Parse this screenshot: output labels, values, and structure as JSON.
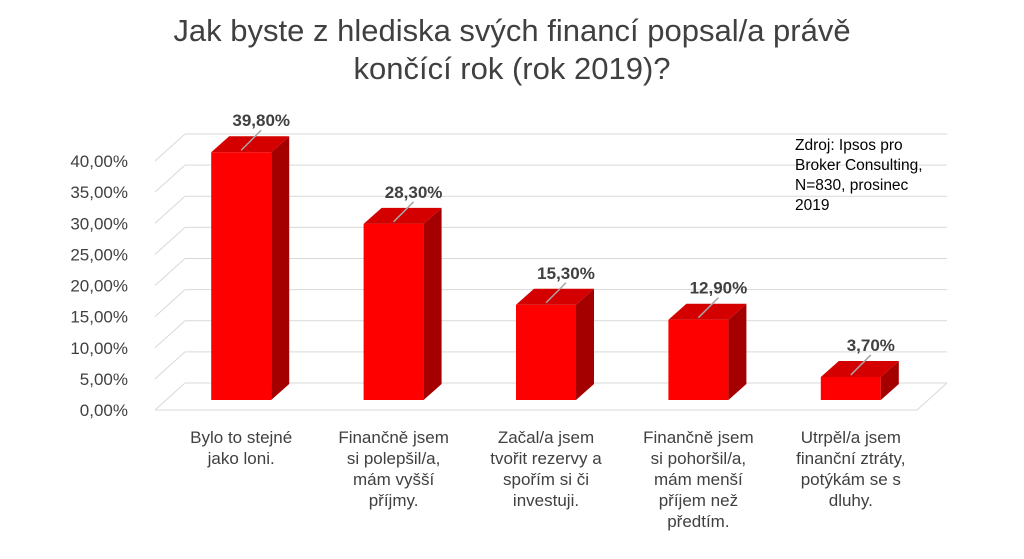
{
  "chart_data": {
    "type": "bar",
    "title": [
      "Jak byste z hlediska svých financí popsal/a právě",
      "končící rok (rok 2019)?"
    ],
    "categories": [
      [
        "Bylo to stejné",
        "jako loni."
      ],
      [
        "Finančně jsem",
        "si polepšil/a,",
        "mám vyšší",
        "příjmy."
      ],
      [
        "Začal/a jsem",
        "tvořit rezervy a",
        "spořím si či",
        "investuji."
      ],
      [
        "Finančně jsem",
        "si pohoršil/a,",
        "mám menší",
        "příjem než",
        "předtím."
      ],
      [
        "Utrpěl/a jsem",
        "finanční ztráty,",
        "potýkám se s",
        "dluhy."
      ]
    ],
    "values": [
      39.8,
      28.3,
      15.3,
      12.9,
      3.7
    ],
    "data_labels": [
      "39,80%",
      "28,30%",
      "15,30%",
      "12,90%",
      "3,70%"
    ],
    "yticks": [
      "0,00%",
      "5,00%",
      "10,00%",
      "15,00%",
      "20,00%",
      "25,00%",
      "30,00%",
      "35,00%",
      "40,00%"
    ],
    "ylim": [
      0,
      40
    ],
    "grid": true,
    "bar_color": "#ff0000",
    "bar_side_color": "#a50000",
    "bar_top_color": "#d40000",
    "annotation": [
      "Zdroj: Ipsos pro",
      "Broker Consulting,",
      "N=830, prosinec",
      "2019"
    ]
  }
}
